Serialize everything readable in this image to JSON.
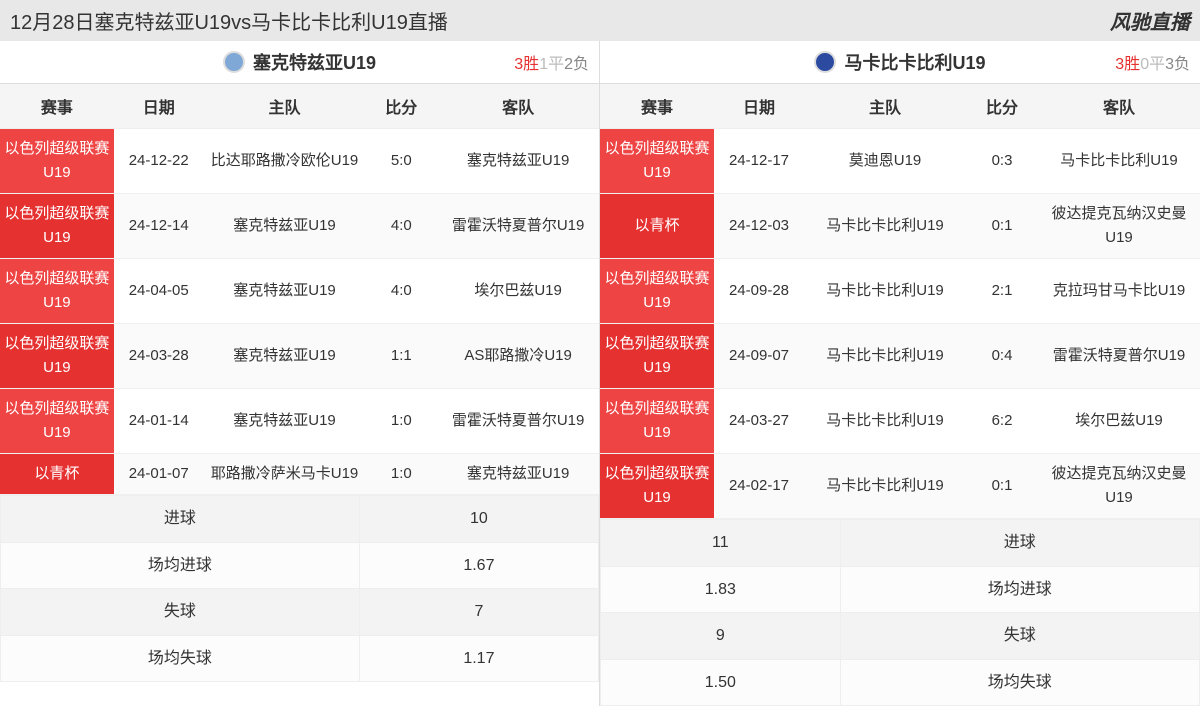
{
  "header": {
    "title": "12月28日塞克特兹亚U19vs马卡比卡比利U19直播",
    "brand": "风驰直播"
  },
  "columns": {
    "competition": "赛事",
    "date": "日期",
    "home": "主队",
    "score": "比分",
    "away": "客队"
  },
  "colors": {
    "comp_bg_a": "#ee4444",
    "comp_bg_b": "#e63131",
    "win": "#e63131",
    "draw": "#bbbbbb",
    "loss": "#888888",
    "logo_left": "#7fa8d6",
    "logo_right": "#2b4aa0"
  },
  "left": {
    "team": "塞克特兹亚U19",
    "record": {
      "w": "3胜",
      "d": "1平",
      "l": "2负"
    },
    "rows": [
      {
        "comp": "以色列超级联赛U19",
        "date": "24-12-22",
        "home": "比达耶路撒冷欧伦U19",
        "score": "5:0",
        "away": "塞克特兹亚U19"
      },
      {
        "comp": "以色列超级联赛U19",
        "date": "24-12-14",
        "home": "塞克特兹亚U19",
        "score": "4:0",
        "away": "雷霍沃特夏普尔U19"
      },
      {
        "comp": "以色列超级联赛U19",
        "date": "24-04-05",
        "home": "塞克特兹亚U19",
        "score": "4:0",
        "away": "埃尔巴兹U19"
      },
      {
        "comp": "以色列超级联赛U19",
        "date": "24-03-28",
        "home": "塞克特兹亚U19",
        "score": "1:1",
        "away": "AS耶路撒冷U19"
      },
      {
        "comp": "以色列超级联赛U19",
        "date": "24-01-14",
        "home": "塞克特兹亚U19",
        "score": "1:0",
        "away": "雷霍沃特夏普尔U19"
      },
      {
        "comp": "以青杯",
        "date": "24-01-07",
        "home": "耶路撒冷萨米马卡U19",
        "score": "1:0",
        "away": "塞克特兹亚U19"
      }
    ],
    "stats": [
      {
        "label": "进球",
        "value": "10"
      },
      {
        "label": "场均进球",
        "value": "1.67"
      },
      {
        "label": "失球",
        "value": "7"
      },
      {
        "label": "场均失球",
        "value": "1.17"
      }
    ]
  },
  "right": {
    "team": "马卡比卡比利U19",
    "record": {
      "w": "3胜",
      "d": "0平",
      "l": "3负"
    },
    "rows": [
      {
        "comp": "以色列超级联赛U19",
        "date": "24-12-17",
        "home": "莫迪恩U19",
        "score": "0:3",
        "away": "马卡比卡比利U19"
      },
      {
        "comp": "以青杯",
        "date": "24-12-03",
        "home": "马卡比卡比利U19",
        "score": "0:1",
        "away": "彼达提克瓦纳汉史曼U19"
      },
      {
        "comp": "以色列超级联赛U19",
        "date": "24-09-28",
        "home": "马卡比卡比利U19",
        "score": "2:1",
        "away": "克拉玛甘马卡比U19"
      },
      {
        "comp": "以色列超级联赛U19",
        "date": "24-09-07",
        "home": "马卡比卡比利U19",
        "score": "0:4",
        "away": "雷霍沃特夏普尔U19"
      },
      {
        "comp": "以色列超级联赛U19",
        "date": "24-03-27",
        "home": "马卡比卡比利U19",
        "score": "6:2",
        "away": "埃尔巴兹U19"
      },
      {
        "comp": "以色列超级联赛U19",
        "date": "24-02-17",
        "home": "马卡比卡比利U19",
        "score": "0:1",
        "away": "彼达提克瓦纳汉史曼U19"
      }
    ],
    "stats": [
      {
        "label": "进球",
        "value": "11"
      },
      {
        "label": "场均进球",
        "value": "1.83"
      },
      {
        "label": "失球",
        "value": "9"
      },
      {
        "label": "场均失球",
        "value": "1.50"
      }
    ]
  }
}
